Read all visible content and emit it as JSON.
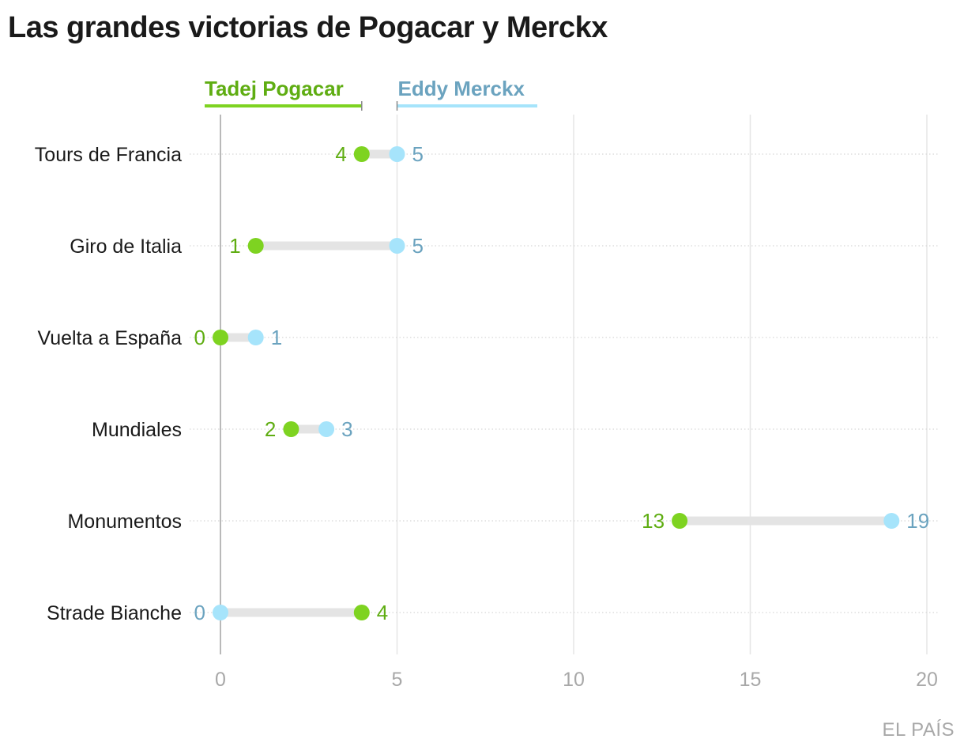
{
  "title": "Las grandes victorias de Pogacar y Merckx",
  "source": "EL PAÍS",
  "chart_data": {
    "type": "dumbbell",
    "title": "Las grandes victorias de Pogacar y Merckx",
    "categories": [
      "Tours de Francia",
      "Giro de Italia",
      "Vuelta a España",
      "Mundiales",
      "Monumentos",
      "Strade Bianche"
    ],
    "series": [
      {
        "name": "Tadej Pogacar",
        "color": "#7ed321",
        "label_color": "#5fad12",
        "values": [
          4,
          1,
          0,
          2,
          13,
          4
        ]
      },
      {
        "name": "Eddy Merckx",
        "color": "#a6e4fb",
        "label_color": "#6ba3bf",
        "values": [
          5,
          5,
          1,
          3,
          19,
          0
        ]
      }
    ],
    "xlim": [
      0,
      20
    ],
    "xticks": [
      "0",
      "5",
      "10",
      "15",
      "20"
    ],
    "xlabel": "",
    "ylabel": "",
    "grid": true,
    "legend_position": "top",
    "connector_color": "#e4e4e4"
  }
}
